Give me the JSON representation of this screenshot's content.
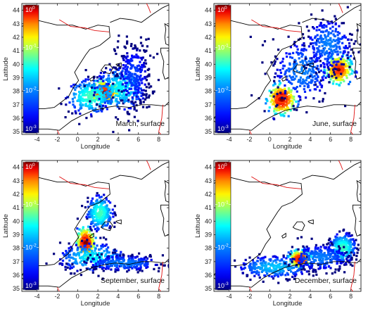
{
  "colors": {
    "coastline": "#000000",
    "border": "#e01010",
    "colormap": [
      "#00007f",
      "#0000ff",
      "#007fff",
      "#00ffff",
      "#7fff7f",
      "#ffff00",
      "#ff7f00",
      "#ff0000",
      "#7f0000"
    ]
  },
  "chart_data": [
    {
      "type": "heatmap",
      "panel": "march",
      "label": "March, surface",
      "xlabel": "Longitude",
      "ylabel": "Latitude",
      "xlim": [
        -5.5,
        9
      ],
      "ylim": [
        34.8,
        44.5
      ],
      "xticks": [
        -4,
        -2,
        0,
        2,
        4,
        6,
        8
      ],
      "yticks": [
        35,
        36,
        37,
        38,
        39,
        40,
        41,
        42,
        43,
        44
      ],
      "colorbar": {
        "scale": "log",
        "min": 0.001,
        "max": 1,
        "tick_labels": [
          "10^0",
          "10^-1",
          "10^-2",
          "10^-3"
        ]
      },
      "hotspots": [
        {
          "lon": 2.6,
          "lat": 37.9,
          "lon_spread": 0.7,
          "lat_spread": 0.4,
          "peak": 0.8
        },
        {
          "lon": 1.3,
          "lat": 37.6,
          "lon_spread": 1.1,
          "lat_spread": 0.6,
          "peak": 0.05
        },
        {
          "lon": 4.2,
          "lat": 38.2,
          "lon_spread": 1.2,
          "lat_spread": 0.8,
          "peak": 0.03
        },
        {
          "lon": 5.5,
          "lat": 39.2,
          "lon_spread": 0.9,
          "lat_spread": 1.3,
          "peak": 0.005
        }
      ]
    },
    {
      "type": "heatmap",
      "panel": "june",
      "label": "June, surface",
      "xlabel": "Longitude",
      "ylabel": "Latitude",
      "xlim": [
        -5.5,
        9
      ],
      "ylim": [
        34.8,
        44.5
      ],
      "xticks": [
        -4,
        -2,
        0,
        2,
        4,
        6,
        8
      ],
      "yticks": [
        35,
        36,
        37,
        38,
        39,
        40,
        41,
        42,
        43,
        44
      ],
      "colorbar": {
        "scale": "log",
        "min": 0.001,
        "max": 1,
        "tick_labels": [
          "10^0",
          "10^-1",
          "10^-2",
          "10^-3"
        ]
      },
      "hotspots": [
        {
          "lon": 1.2,
          "lat": 37.4,
          "lon_spread": 0.6,
          "lat_spread": 0.5,
          "peak": 0.9
        },
        {
          "lon": 6.8,
          "lat": 39.6,
          "lon_spread": 0.6,
          "lat_spread": 0.5,
          "peak": 0.6
        },
        {
          "lon": 3.2,
          "lat": 39.5,
          "lon_spread": 1.5,
          "lat_spread": 1.2,
          "peak": 0.01
        },
        {
          "lon": 5.8,
          "lat": 41.5,
          "lon_spread": 1.2,
          "lat_spread": 1.0,
          "peak": 0.01
        }
      ]
    },
    {
      "type": "heatmap",
      "panel": "september",
      "label": "September, surface",
      "xlabel": "Longitude",
      "ylabel": "Latitude",
      "xlim": [
        -5.5,
        9
      ],
      "ylim": [
        34.8,
        44.5
      ],
      "xticks": [
        -4,
        -2,
        0,
        2,
        4,
        6,
        8
      ],
      "yticks": [
        35,
        36,
        37,
        38,
        39,
        40,
        41,
        42,
        43,
        44
      ],
      "colorbar": {
        "scale": "log",
        "min": 0.001,
        "max": 1,
        "tick_labels": [
          "10^0",
          "10^-1",
          "10^-2",
          "10^-3"
        ]
      },
      "hotspots": [
        {
          "lon": 0.8,
          "lat": 38.4,
          "lon_spread": 0.4,
          "lat_spread": 0.5,
          "peak": 0.9
        },
        {
          "lon": 2.2,
          "lat": 40.6,
          "lon_spread": 0.6,
          "lat_spread": 0.6,
          "peak": 0.05
        },
        {
          "lon": 1.5,
          "lat": 37.3,
          "lon_spread": 1.6,
          "lat_spread": 0.5,
          "peak": 0.03
        },
        {
          "lon": 4.5,
          "lat": 36.9,
          "lon_spread": 2.0,
          "lat_spread": 0.3,
          "peak": 0.01
        }
      ]
    },
    {
      "type": "heatmap",
      "panel": "december",
      "label": "December, surface",
      "xlabel": "Longitude",
      "ylabel": "Latitude",
      "xlim": [
        -5.5,
        9
      ],
      "ylim": [
        34.8,
        44.5
      ],
      "xticks": [
        -4,
        -2,
        0,
        2,
        4,
        6,
        8
      ],
      "yticks": [
        35,
        36,
        37,
        38,
        39,
        40,
        41,
        42,
        43,
        44
      ],
      "colorbar": {
        "scale": "log",
        "min": 0.001,
        "max": 1,
        "tick_labels": [
          "10^0",
          "10^-1",
          "10^-2",
          "10^-3"
        ]
      },
      "hotspots": [
        {
          "lon": 3.0,
          "lat": 37.2,
          "lon_spread": 0.5,
          "lat_spread": 0.3,
          "peak": 0.7
        },
        {
          "lon": 7.2,
          "lat": 38.0,
          "lon_spread": 0.6,
          "lat_spread": 0.5,
          "peak": 0.05
        },
        {
          "lon": 0.5,
          "lat": 36.6,
          "lon_spread": 1.8,
          "lat_spread": 0.4,
          "peak": 0.02
        },
        {
          "lon": 5.0,
          "lat": 37.3,
          "lon_spread": 1.5,
          "lat_spread": 0.5,
          "peak": 0.01
        }
      ]
    }
  ]
}
